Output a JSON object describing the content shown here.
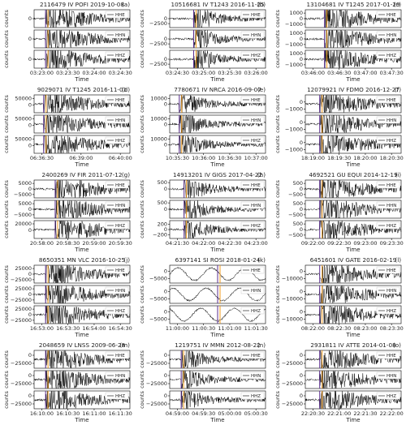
{
  "chart_data": [
    {
      "type": "line",
      "title": "2116479 IV POFI 2019-10-08",
      "label": "(a)",
      "xlabel": "Time",
      "ylabel": "counts",
      "xticks": [
        "03:23:00",
        "03:23:30",
        "03:24:00",
        "03:24:30"
      ],
      "series": [
        {
          "name": "HHE",
          "ylim": [
            -20000,
            20000
          ],
          "yticks": [
            0
          ]
        },
        {
          "name": "HHN",
          "ylim": [
            -20000,
            20000
          ],
          "yticks": [
            0
          ]
        },
        {
          "name": "HHZ",
          "ylim": [
            -20000,
            20000
          ],
          "yticks": [
            0
          ]
        }
      ]
    },
    {
      "type": "line",
      "title": "10516681 IV T1243 2016-11-25",
      "label": "(b)",
      "xlabel": "Time",
      "ylabel": "counts",
      "xticks": [
        "03:24:30",
        "03:25:00",
        "03:25:30",
        "03:26:00"
      ],
      "series": [
        {
          "name": "HHE",
          "ylim": [
            -4500,
            4500
          ],
          "yticks": [
            0,
            {
              "value": -2500,
              "label": "−2500"
            }
          ]
        },
        {
          "name": "HHN",
          "ylim": [
            -4500,
            4500
          ],
          "yticks": [
            0,
            {
              "value": -2500,
              "label": "−2500"
            }
          ]
        },
        {
          "name": "HHZ",
          "ylim": [
            -4500,
            4500
          ],
          "yticks": [
            0,
            {
              "value": -2500,
              "label": "−2500"
            }
          ]
        }
      ]
    },
    {
      "type": "line",
      "title": "13104681 IV T1245 2017-01-29",
      "label": "(c)",
      "xlabel": "Time",
      "ylabel": "counts",
      "xticks": [
        "03:46:00",
        "03:46:30",
        "03:47:00",
        "03:47:30"
      ],
      "series": [
        {
          "name": "HHE",
          "ylim": [
            -1600,
            1600
          ],
          "yticks": [
            1000,
            0,
            {
              "value": -1000,
              "label": "−1000"
            }
          ]
        },
        {
          "name": "HHN",
          "ylim": [
            -1600,
            1600
          ],
          "yticks": [
            1000,
            0,
            {
              "value": -1000,
              "label": "−1000"
            }
          ]
        },
        {
          "name": "HHZ",
          "ylim": [
            -1600,
            1600
          ],
          "yticks": [
            1000,
            0,
            {
              "value": -1000,
              "label": "−1000"
            }
          ]
        }
      ]
    },
    {
      "type": "line",
      "title": "9029071 IV T1245 2016-11-01",
      "label": "(d)",
      "xlabel": "Time",
      "ylabel": "counts",
      "xticks": [
        "06:36:30",
        "06:39:00",
        "06:40:00"
      ],
      "series": [
        {
          "name": "HHE",
          "ylim": [
            -60000,
            80000
          ],
          "yticks": [
            50000,
            0
          ]
        },
        {
          "name": "HHN",
          "ylim": [
            -60000,
            80000
          ],
          "yticks": [
            50000,
            0
          ]
        },
        {
          "name": "HHZ",
          "ylim": [
            -60000,
            80000
          ],
          "yticks": [
            50000,
            0
          ]
        }
      ]
    },
    {
      "type": "line",
      "title": "7780671 IV NRCA 2016-09-07",
      "label": "(e)",
      "xlabel": "Time",
      "ylabel": "counts",
      "xticks": [
        "10:35:30",
        "10:36:00",
        "10:36:30",
        "10:37:00"
      ],
      "series": [
        {
          "name": "HHE",
          "ylim": [
            -14000,
            16000
          ],
          "yticks": [
            10000,
            0
          ]
        },
        {
          "name": "HHN",
          "ylim": [
            -14000,
            16000
          ],
          "yticks": [
            10000,
            0
          ]
        },
        {
          "name": "HHZ",
          "ylim": [
            -14000,
            16000
          ],
          "yticks": [
            10000,
            0
          ]
        }
      ]
    },
    {
      "type": "line",
      "title": "12079921 IV FDMO 2016-12-27",
      "label": "(f)",
      "xlabel": "Time",
      "ylabel": "counts",
      "xticks": [
        "18:19:00",
        "18:19:30",
        "18:20:00",
        "18:20:30"
      ],
      "series": [
        {
          "name": "HHE",
          "ylim": [
            -1500,
            1000
          ],
          "yticks": [
            0,
            {
              "value": -1000,
              "label": "−1000"
            }
          ]
        },
        {
          "name": "HHN",
          "ylim": [
            -1500,
            1000
          ],
          "yticks": [
            0,
            {
              "value": -1000,
              "label": "−1000"
            }
          ]
        },
        {
          "name": "HHZ",
          "ylim": [
            -1500,
            1000
          ],
          "yticks": [
            0,
            {
              "value": -1000,
              "label": "−1000"
            }
          ]
        }
      ]
    },
    {
      "type": "line",
      "title": "2400269 IV FIR 2011-07-12",
      "label": "(g)",
      "xlabel": "Time",
      "ylabel": "counts",
      "xticks": [
        "20:58:00",
        "20:58:30",
        "20:59:00",
        "20:59:30"
      ],
      "series": [
        {
          "name": "HHE",
          "ylim": [
            -8000,
            8000
          ],
          "yticks": [
            5000,
            0,
            {
              "value": -5000,
              "label": "−5000"
            }
          ]
        },
        {
          "name": "HHN",
          "ylim": [
            -8000,
            8000
          ],
          "yticks": [
            5000,
            0,
            {
              "value": -5000,
              "label": "−5000"
            }
          ]
        },
        {
          "name": "HHZ",
          "ylim": [
            -25000,
            30000
          ],
          "yticks": [
            20000,
            0
          ]
        }
      ]
    },
    {
      "type": "line",
      "title": "14913201 IV GIGS 2017-04-22",
      "label": "(h)",
      "xlabel": "Time",
      "ylabel": "counts",
      "xticks": [
        "04:21:30",
        "04:22:00",
        "04:22:30",
        "04:23:00"
      ],
      "series": [
        {
          "name": "HHE",
          "ylim": [
            -700,
            700
          ],
          "yticks": [
            500,
            0
          ]
        },
        {
          "name": "HHN",
          "ylim": [
            -700,
            700
          ],
          "yticks": [
            500,
            0
          ]
        },
        {
          "name": "HHZ",
          "ylim": [
            -350,
            350
          ],
          "yticks": [
            200,
            0,
            {
              "value": -200,
              "label": "−200"
            }
          ]
        }
      ]
    },
    {
      "type": "line",
      "title": "4692521 GU EQUI 2014-12-19",
      "label": "(i)",
      "xlabel": "Time",
      "ylabel": "counts",
      "xticks": [
        "09:22:00",
        "09:22:30",
        "09:23:00",
        "09:23:30"
      ],
      "series": [
        {
          "name": "HHE",
          "ylim": [
            -800,
            800
          ],
          "yticks": [
            500,
            0,
            {
              "value": -500,
              "label": "−500"
            }
          ]
        },
        {
          "name": "HHN",
          "ylim": [
            -800,
            800
          ],
          "yticks": [
            500,
            0,
            {
              "value": -500,
              "label": "−500"
            }
          ]
        },
        {
          "name": "HHZ",
          "ylim": [
            -800,
            800
          ],
          "yticks": [
            500,
            0,
            {
              "value": -500,
              "label": "−500"
            }
          ]
        }
      ]
    },
    {
      "type": "line",
      "title": "8650351 MN VLC 2016-10-25",
      "label": "(j)",
      "xlabel": "Time",
      "ylabel": "counts",
      "xticks": [
        "16:53:00",
        "16:53:30",
        "16:54:00",
        "16:54:30"
      ],
      "series": [
        {
          "name": "HHE",
          "ylim": [
            -40000,
            40000
          ],
          "yticks": [
            25000,
            0,
            {
              "value": -25000,
              "label": "−25000"
            }
          ]
        },
        {
          "name": "HHN",
          "ylim": [
            -40000,
            40000
          ],
          "yticks": [
            25000,
            0,
            {
              "value": -25000,
              "label": "−25000"
            }
          ]
        },
        {
          "name": "HHZ",
          "ylim": [
            -40000,
            40000
          ],
          "yticks": [
            25000,
            0,
            {
              "value": -25000,
              "label": "−25000"
            }
          ]
        }
      ]
    },
    {
      "type": "line",
      "title": "6397141 SI ROSI 2018-01-24",
      "label": "(k)",
      "xlabel": "Time",
      "ylabel": "counts",
      "xticks": [
        "11:00:00",
        "11:00:30",
        "11:01:00",
        "11:01:30"
      ],
      "series": [
        {
          "name": "HHE",
          "ylim": [
            -8000,
            4000
          ],
          "yticks": [
            0,
            {
              "value": -5000,
              "label": "−5000"
            }
          ]
        },
        {
          "name": "HHN",
          "ylim": [
            -8000,
            4000
          ],
          "yticks": [
            0,
            {
              "value": -5000,
              "label": "−5000"
            }
          ]
        },
        {
          "name": "HHZ",
          "ylim": [
            -8000,
            4000
          ],
          "yticks": [
            0,
            {
              "value": -5000,
              "label": "−5000"
            }
          ]
        }
      ]
    },
    {
      "type": "line",
      "title": "6451601 IV GATE 2016-02-19",
      "label": "(l)",
      "xlabel": "Time",
      "ylabel": "counts",
      "xticks": [
        "08:22:00",
        "08:22:30",
        "08:23:00",
        "08:23:30"
      ],
      "series": [
        {
          "name": "HHE",
          "ylim": [
            -16000,
            8000
          ],
          "yticks": [
            0,
            {
              "value": -10000,
              "label": "−10000"
            }
          ]
        },
        {
          "name": "HHN",
          "ylim": [
            -16000,
            8000
          ],
          "yticks": [
            0,
            {
              "value": -10000,
              "label": "−10000"
            }
          ]
        },
        {
          "name": "HHZ",
          "ylim": [
            -16000,
            8000
          ],
          "yticks": [
            0,
            {
              "value": -10000,
              "label": "−10000"
            }
          ]
        }
      ]
    },
    {
      "type": "line",
      "title": "2048659 IV LNSS 2009-06-28",
      "label": "(m)",
      "xlabel": "Time",
      "ylabel": "counts",
      "xticks": [
        "16:10:00",
        "16:10:30",
        "16:11:00",
        "16:11:30"
      ],
      "series": [
        {
          "name": "HHE",
          "ylim": [
            -40000,
            15000
          ],
          "yticks": [
            0,
            {
              "value": -25000,
              "label": "−25000"
            }
          ]
        },
        {
          "name": "HHN",
          "ylim": [
            -40000,
            15000
          ],
          "yticks": [
            0,
            {
              "value": -25000,
              "label": "−25000"
            }
          ]
        },
        {
          "name": "HHZ",
          "ylim": [
            -40000,
            15000
          ],
          "yticks": [
            0,
            {
              "value": -25000,
              "label": "−25000"
            }
          ]
        }
      ]
    },
    {
      "type": "line",
      "title": "1219751 IV MMN 2012-08-22",
      "label": "(n)",
      "xlabel": "Time",
      "ylabel": "counts",
      "xticks": [
        "04:59:00",
        "04:59:30",
        "05:00:00",
        "05:00:30"
      ],
      "series": [
        {
          "name": "HHE",
          "ylim": [
            -40000,
            15000
          ],
          "yticks": [
            0,
            {
              "value": -25000,
              "label": "−25000"
            }
          ]
        },
        {
          "name": "HHN",
          "ylim": [
            -40000,
            15000
          ],
          "yticks": [
            0,
            {
              "value": -25000,
              "label": "−25000"
            }
          ]
        },
        {
          "name": "HHZ",
          "ylim": [
            -40000,
            15000
          ],
          "yticks": [
            0,
            {
              "value": -25000,
              "label": "−25000"
            }
          ]
        }
      ]
    },
    {
      "type": "line",
      "title": "2931811 IV ATTE 2014-01-08",
      "label": "(o)",
      "xlabel": "Time",
      "ylabel": "counts",
      "xticks": [
        "22:20:30",
        "22:21:00",
        "22:21:30",
        "22:22:00"
      ],
      "series": [
        {
          "name": "HHE",
          "ylim": [
            -40000,
            15000
          ],
          "yticks": [
            0,
            {
              "value": -25000,
              "label": "−25000"
            }
          ]
        },
        {
          "name": "HHN",
          "ylim": [
            -40000,
            15000
          ],
          "yticks": [
            0,
            {
              "value": -25000,
              "label": "−25000"
            }
          ]
        },
        {
          "name": "HHZ",
          "ylim": [
            -40000,
            15000
          ],
          "yticks": [
            0,
            {
              "value": -25000,
              "label": "−25000"
            }
          ]
        }
      ]
    }
  ]
}
